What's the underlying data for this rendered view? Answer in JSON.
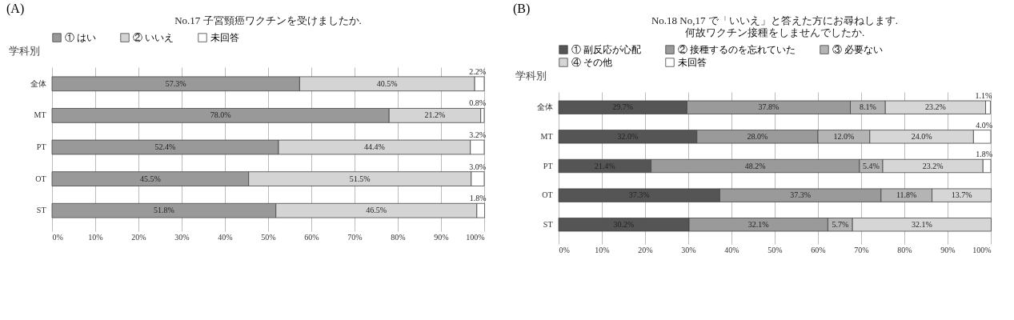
{
  "chart_data": [
    {
      "type": "bar",
      "stacked": true,
      "orientation": "horizontal",
      "annotations": [
        "(A)"
      ],
      "title": "No.17 子宮頸癌ワクチンを受けましたか.",
      "ylabel": "学科別",
      "categories": [
        "全体",
        "MT",
        "PT",
        "OT",
        "ST"
      ],
      "series": [
        {
          "name": "① はい",
          "color": "#999999",
          "values": [
            57.3,
            78.0,
            52.4,
            45.5,
            51.8
          ],
          "value_labels": [
            "57.3%",
            "78.0%",
            "52.4%",
            "45.5%",
            "51.8%"
          ]
        },
        {
          "name": "② いいえ",
          "color": "#d4d4d4",
          "values": [
            40.5,
            21.2,
            44.4,
            51.5,
            46.5
          ],
          "value_labels": [
            "40.5%",
            "21.2%",
            "44.4%",
            "51.5%",
            "46.5%"
          ]
        },
        {
          "name": "未回答",
          "color": "#ffffff",
          "values": [
            2.2,
            0.8,
            3.2,
            3.0,
            1.8
          ],
          "value_labels": [
            "2.2%",
            "0.8%",
            "3.2%",
            "3.0%",
            "1.8%"
          ]
        }
      ],
      "xlim": [
        0,
        100
      ],
      "xticks": [
        {
          "value": 0,
          "label": "0%"
        },
        {
          "value": 10,
          "label": "10%"
        },
        {
          "value": 20,
          "label": "20%"
        },
        {
          "value": 30,
          "label": "30%"
        },
        {
          "value": 40,
          "label": "40%"
        },
        {
          "value": 50,
          "label": "50%"
        },
        {
          "value": 60,
          "label": "60%"
        },
        {
          "value": 70,
          "label": "70%"
        },
        {
          "value": 80,
          "label": "80%"
        },
        {
          "value": 90,
          "label": "90%"
        },
        {
          "value": 100,
          "label": "100%"
        }
      ],
      "grid": "x",
      "legend": "top"
    },
    {
      "type": "bar",
      "stacked": true,
      "orientation": "horizontal",
      "annotations": [
        "(B)"
      ],
      "title": "No.18 No,17 で「いいえ」と答えた方にお尋ねします.\n何故ワクチン接種をしませんでしたか.",
      "ylabel": "学科別",
      "categories": [
        "全体",
        "MT",
        "PT",
        "OT",
        "ST"
      ],
      "series": [
        {
          "name": "① 副反応が心配",
          "color": "#555555",
          "values": [
            29.7,
            32.0,
            21.4,
            37.3,
            30.2
          ],
          "value_labels": [
            "29.7%",
            "32.0%",
            "21.4%",
            "37.3%",
            "30.2%"
          ]
        },
        {
          "name": "② 接種するのを忘れていた",
          "color": "#9a9a9a",
          "values": [
            37.8,
            28.0,
            48.2,
            37.3,
            32.1
          ],
          "value_labels": [
            "37.8%",
            "28.0%",
            "48.2%",
            "37.3%",
            "32.1%"
          ]
        },
        {
          "name": "③ 必要ない",
          "color": "#b4b4b4",
          "values": [
            8.1,
            12.0,
            5.4,
            11.8,
            5.7
          ],
          "value_labels": [
            "8.1%",
            "12.0%",
            "5.4%",
            "11.8%",
            "5.7%"
          ]
        },
        {
          "name": "④ その他",
          "color": "#d6d6d6",
          "values": [
            23.2,
            24.0,
            23.2,
            13.7,
            32.1
          ],
          "value_labels": [
            "23.2%",
            "24.0%",
            "23.2%",
            "13.7%",
            "32.1%"
          ]
        },
        {
          "name": "未回答",
          "color": "#ffffff",
          "values": [
            1.1,
            4.0,
            1.8,
            null,
            null
          ],
          "value_labels": [
            "1.1%",
            "4.0%",
            "1.8%",
            null,
            null
          ]
        }
      ],
      "xlim": [
        0,
        100
      ],
      "xticks": [
        {
          "value": 0,
          "label": "0%"
        },
        {
          "value": 10,
          "label": "10%"
        },
        {
          "value": 20,
          "label": "20%"
        },
        {
          "value": 30,
          "label": "30%"
        },
        {
          "value": 40,
          "label": "40%"
        },
        {
          "value": 50,
          "label": "50%"
        },
        {
          "value": 60,
          "label": "60%"
        },
        {
          "value": 70,
          "label": "70%"
        },
        {
          "value": 80,
          "label": "80%"
        },
        {
          "value": 90,
          "label": "90%"
        },
        {
          "value": 100,
          "label": "100%"
        }
      ],
      "grid": "x",
      "legend": "top"
    }
  ]
}
